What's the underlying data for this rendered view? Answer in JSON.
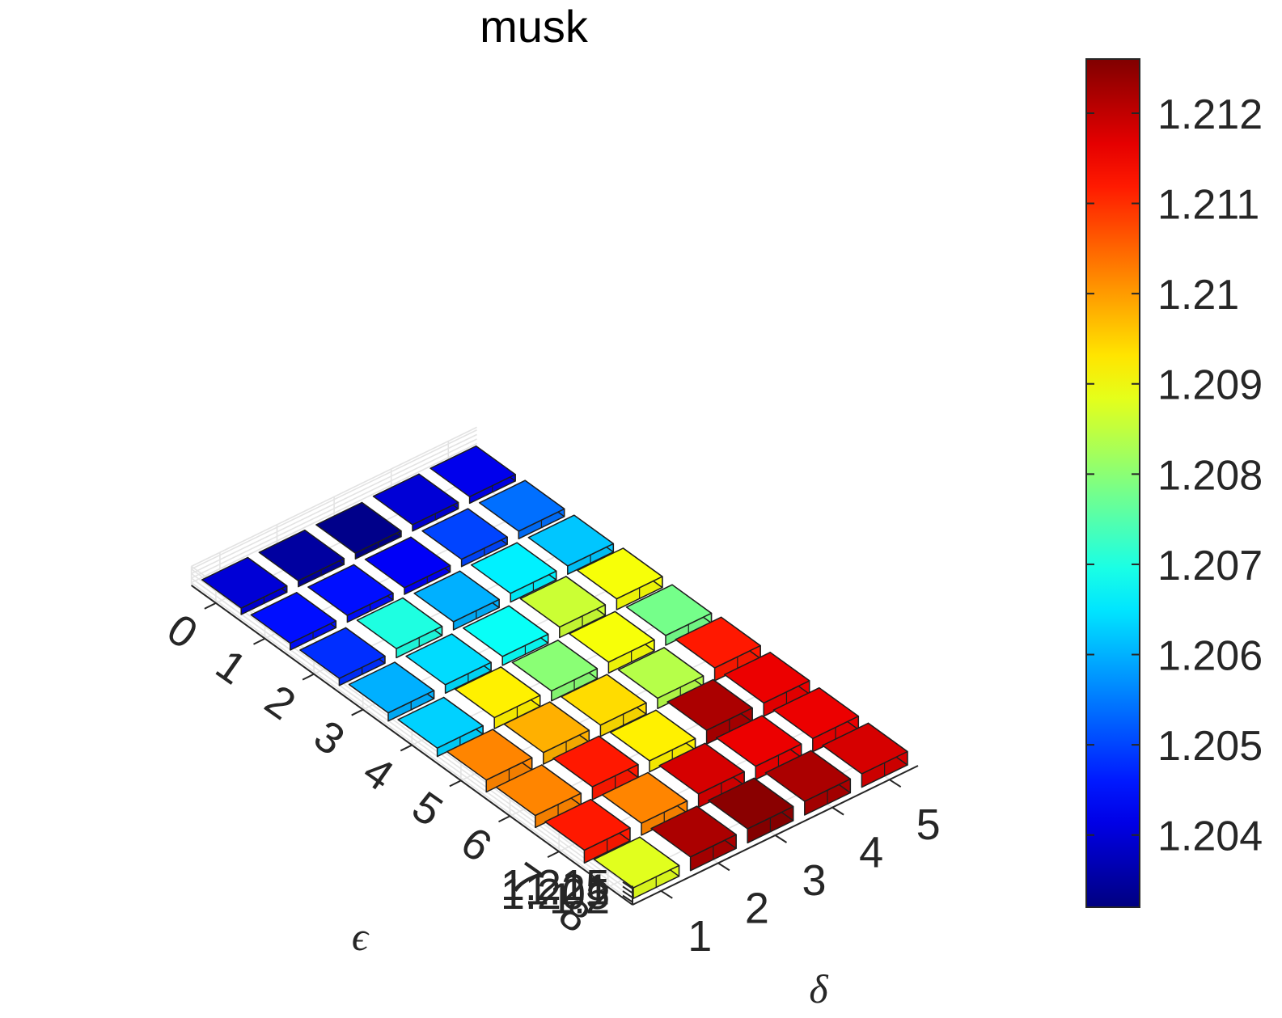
{
  "chart_data": {
    "type": "bar3",
    "title": "musk",
    "xlabel": "δ",
    "ylabel": "ϵ",
    "zlabel": "",
    "x_ticks": [
      "1",
      "2",
      "3",
      "4",
      "5"
    ],
    "y_ticks": [
      "0",
      "1",
      "2",
      "3",
      "4",
      "5",
      "6",
      "7",
      "8"
    ],
    "z_ticks": [
      "1.2",
      "1.205",
      "1.21",
      "1.215"
    ],
    "zlim": [
      1.197,
      1.218
    ],
    "grid": true,
    "colormap": "jet",
    "colorbar": {
      "position": "right",
      "limits": [
        1.2032,
        1.2126
      ],
      "ticks": [
        "1.204",
        "1.205",
        "1.206",
        "1.207",
        "1.208",
        "1.209",
        "1.21",
        "1.211",
        "1.212"
      ]
    },
    "series": [
      {
        "x": "1",
        "values": [
          1.204,
          1.2045,
          1.2048,
          1.206,
          1.2063,
          1.2102,
          1.2102,
          1.2112,
          1.2088
        ]
      },
      {
        "x": "2",
        "values": [
          1.2035,
          1.2045,
          1.207,
          1.2064,
          1.2092,
          1.2098,
          1.2112,
          1.2102,
          1.2122
        ]
      },
      {
        "x": "3",
        "values": [
          1.2033,
          1.2043,
          1.206,
          1.2068,
          1.208,
          1.2094,
          1.2092,
          1.2118,
          1.2125
        ]
      },
      {
        "x": "4",
        "values": [
          1.204,
          1.205,
          1.2066,
          1.2086,
          1.209,
          1.2084,
          1.2122,
          1.2116,
          1.2122
        ]
      },
      {
        "x": "5",
        "values": [
          1.2042,
          1.2054,
          1.2062,
          1.209,
          1.2078,
          1.2112,
          1.2116,
          1.2116,
          1.2118
        ]
      }
    ]
  }
}
